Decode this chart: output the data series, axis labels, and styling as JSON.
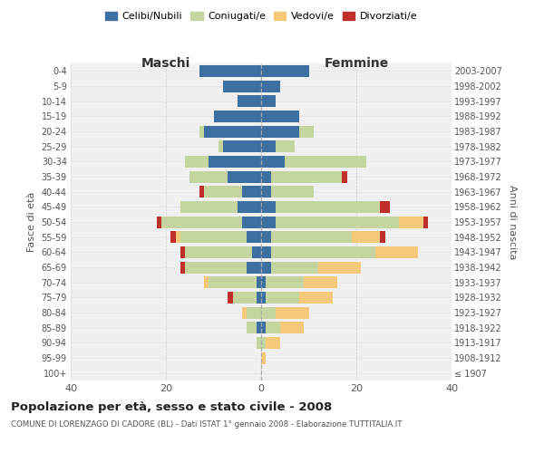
{
  "age_groups": [
    "100+",
    "95-99",
    "90-94",
    "85-89",
    "80-84",
    "75-79",
    "70-74",
    "65-69",
    "60-64",
    "55-59",
    "50-54",
    "45-49",
    "40-44",
    "35-39",
    "30-34",
    "25-29",
    "20-24",
    "15-19",
    "10-14",
    "5-9",
    "0-4"
  ],
  "birth_years": [
    "≤ 1907",
    "1908-1912",
    "1913-1917",
    "1918-1922",
    "1923-1927",
    "1928-1932",
    "1933-1937",
    "1938-1942",
    "1943-1947",
    "1948-1952",
    "1953-1957",
    "1958-1962",
    "1963-1967",
    "1968-1972",
    "1973-1977",
    "1978-1982",
    "1983-1987",
    "1988-1992",
    "1993-1997",
    "1998-2002",
    "2003-2007"
  ],
  "colors": {
    "celibe": "#3d6fa0",
    "coniugato": "#c5d5a0",
    "vedovo": "#f5c97a",
    "divorziato": "#c0302a"
  },
  "maschi": {
    "celibe": [
      0,
      0,
      0,
      1,
      0,
      1,
      1,
      3,
      2,
      3,
      4,
      5,
      4,
      7,
      11,
      8,
      12,
      10,
      5,
      8,
      13
    ],
    "coniugato": [
      0,
      0,
      1,
      2,
      3,
      5,
      10,
      13,
      14,
      14,
      17,
      12,
      8,
      8,
      5,
      1,
      1,
      0,
      0,
      0,
      0
    ],
    "vedovo": [
      0,
      0,
      0,
      0,
      1,
      0,
      1,
      0,
      0,
      1,
      0,
      0,
      0,
      0,
      0,
      0,
      0,
      0,
      0,
      0,
      0
    ],
    "divorziato": [
      0,
      0,
      0,
      0,
      0,
      1,
      0,
      1,
      1,
      1,
      1,
      0,
      1,
      0,
      0,
      0,
      0,
      0,
      0,
      0,
      0
    ]
  },
  "femmine": {
    "nubile": [
      0,
      0,
      0,
      1,
      0,
      1,
      1,
      2,
      2,
      2,
      3,
      3,
      2,
      2,
      5,
      3,
      8,
      8,
      3,
      4,
      10
    ],
    "coniugata": [
      0,
      0,
      1,
      3,
      3,
      7,
      8,
      10,
      22,
      17,
      26,
      22,
      9,
      15,
      17,
      4,
      3,
      0,
      0,
      0,
      0
    ],
    "vedova": [
      0,
      1,
      3,
      5,
      7,
      7,
      7,
      9,
      9,
      6,
      5,
      0,
      0,
      0,
      0,
      0,
      0,
      0,
      0,
      0,
      0
    ],
    "divorziata": [
      0,
      0,
      0,
      0,
      0,
      0,
      0,
      0,
      0,
      1,
      1,
      2,
      0,
      1,
      0,
      0,
      0,
      0,
      0,
      0,
      0
    ]
  },
  "xlim": 40,
  "title": "Popolazione per età, sesso e stato civile - 2008",
  "subtitle": "COMUNE DI LORENZAGO DI CADORE (BL) - Dati ISTAT 1° gennaio 2008 - Elaborazione TUTTITALIA.IT",
  "ylabel_left": "Fasce di età",
  "ylabel_right": "Anni di nascita",
  "legend_labels": [
    "Celibi/Nubili",
    "Coniugati/e",
    "Vedovi/e",
    "Divorziati/e"
  ],
  "maschi_label": "Maschi",
  "femmine_label": "Femmine",
  "bg_color": "#f0f0f0",
  "grid_color": "#cccccc"
}
